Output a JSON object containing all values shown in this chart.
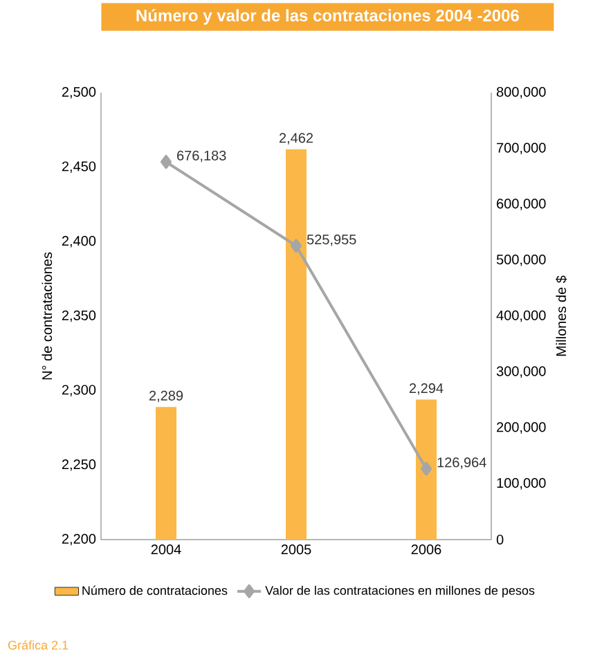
{
  "chart_data": {
    "type": "bar",
    "title": "Número y valor de las contrataciones 2004 -2006",
    "categories": [
      "2004",
      "2005",
      "2006"
    ],
    "ylabel": "N° de contrataciones",
    "y2label": "Millones de $",
    "ylim": [
      2200,
      2500
    ],
    "yticks": [
      {
        "value": 2200,
        "label": "2,200"
      },
      {
        "value": 2250,
        "label": "2,250"
      },
      {
        "value": 2300,
        "label": "2,300"
      },
      {
        "value": 2350,
        "label": "2,350"
      },
      {
        "value": 2400,
        "label": "2,400"
      },
      {
        "value": 2450,
        "label": "2,450"
      },
      {
        "value": 2500,
        "label": "2,500"
      }
    ],
    "y2lim": [
      0,
      800000
    ],
    "y2ticks": [
      0,
      {
        "value": 100000,
        "label": "100,000"
      },
      {
        "value": 200000,
        "label": "200,000"
      },
      {
        "value": 300000,
        "label": "300,000"
      },
      {
        "value": 400000,
        "label": "400,000"
      },
      {
        "value": 500000,
        "label": "500,000"
      },
      {
        "value": 600000,
        "label": "600,000"
      },
      {
        "value": 700000,
        "label": "700,000"
      },
      {
        "value": 800000,
        "label": "800,000"
      }
    ],
    "series": [
      {
        "name": "Número de contrataciones",
        "color": "#fbb848",
        "values": [
          2289,
          2462,
          2294
        ],
        "value_labels": [
          "2,289",
          "2,462",
          "2,294"
        ]
      },
      {
        "name": "Valor de las contrataciones en millones de pesos",
        "type": "line",
        "axis": "y2",
        "color": "#a6a6a6",
        "marker": "diamond",
        "values": [
          676183,
          525955,
          126964
        ],
        "value_labels": [
          "676,183",
          "525,955",
          "126,964"
        ]
      }
    ],
    "legend": "bottom",
    "grid": false,
    "annotations": [
      "Gráfica 2.1"
    ]
  }
}
